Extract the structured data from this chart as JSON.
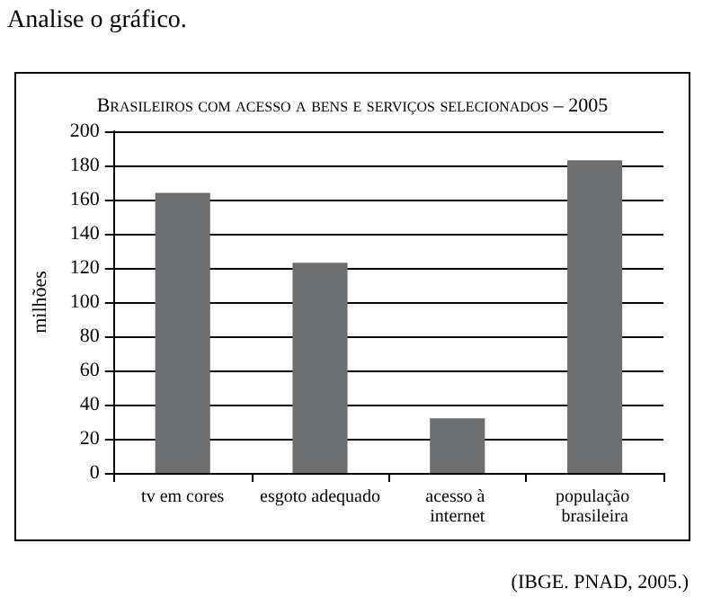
{
  "chart_data": {
    "type": "bar",
    "title": "Brasileiros com acesso a bens e serviços selecionados – 2005",
    "ylabel": "milhões",
    "categories": [
      "tv em cores",
      "esgoto adequado",
      "acesso à internet",
      "população brasileira"
    ],
    "values": [
      164,
      123,
      32,
      183
    ],
    "color": "#6d6e70",
    "ylim": [
      0,
      200
    ],
    "yticks": [
      0,
      20,
      40,
      60,
      80,
      100,
      120,
      140,
      160,
      180,
      200
    ],
    "grid": "y",
    "annotations": [
      "Analise o gráfico.",
      "(IBGE. PNAD, 2005.)"
    ]
  }
}
